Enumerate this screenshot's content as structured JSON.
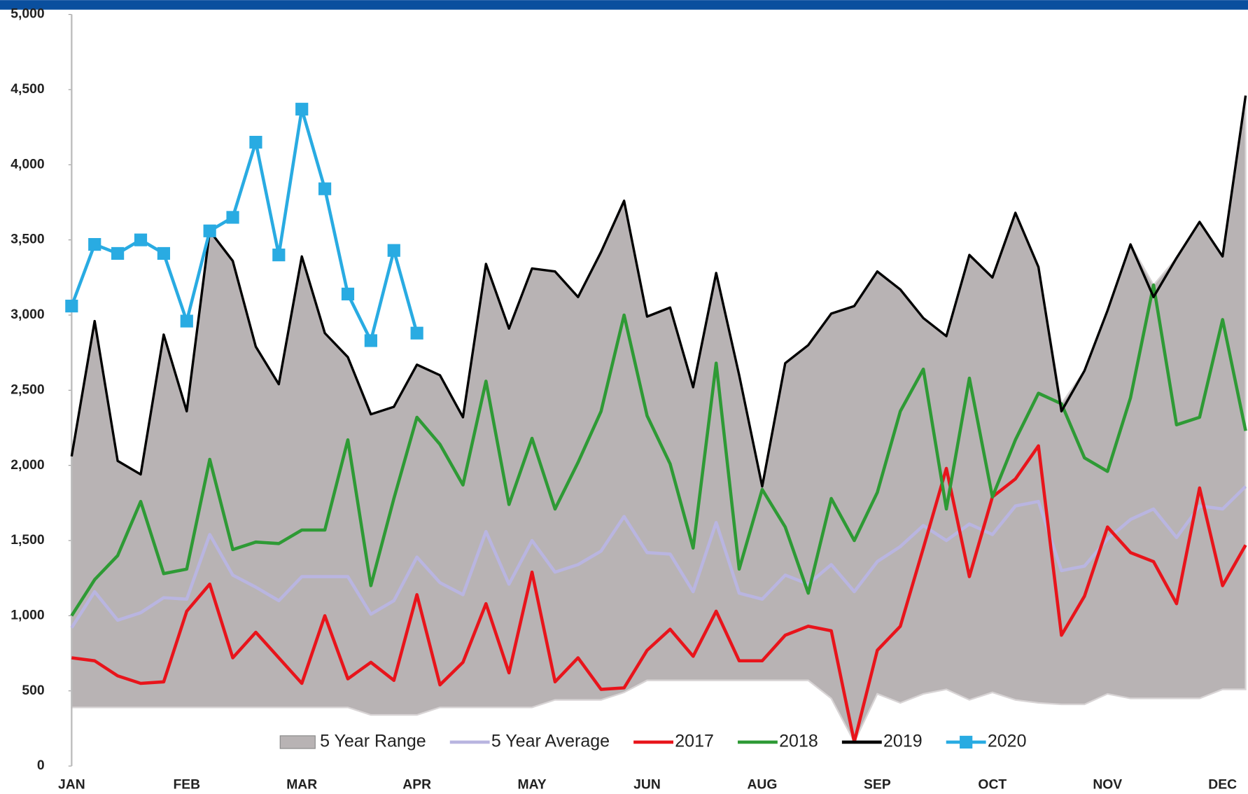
{
  "chart_data": {
    "type": "line",
    "categories": [
      "JAN",
      null,
      null,
      null,
      null,
      "FEB",
      null,
      null,
      null,
      null,
      "MAR",
      null,
      null,
      null,
      null,
      "APR",
      null,
      null,
      null,
      null,
      "MAY",
      null,
      null,
      null,
      null,
      "JUN",
      null,
      null,
      null,
      null,
      "AUG",
      null,
      null,
      null,
      null,
      "SEP",
      null,
      null,
      null,
      null,
      "OCT",
      null,
      null,
      null,
      null,
      "NOV",
      null,
      null,
      null,
      null,
      "DEC",
      null
    ],
    "ylim": [
      0,
      5000
    ],
    "yticks": [
      0,
      500,
      {
        "value": 1000,
        "label": "1,000"
      },
      {
        "value": 1500,
        "label": "1,500"
      },
      {
        "value": 2000,
        "label": "2,000"
      },
      {
        "value": 2500,
        "label": "2,500"
      },
      {
        "value": 3000,
        "label": "3,000"
      },
      {
        "value": 3500,
        "label": "3,500"
      },
      {
        "value": 4000,
        "label": "4,000"
      },
      {
        "value": 4500,
        "label": "4,500"
      },
      {
        "value": 5000,
        "label": "5,000"
      }
    ],
    "legend": "bottom",
    "range": {
      "name": "5 Year Range",
      "color": "#b8b3b4",
      "low": [
        390,
        390,
        390,
        390,
        390,
        390,
        390,
        390,
        390,
        390,
        390,
        390,
        390,
        340,
        340,
        340,
        390,
        390,
        390,
        390,
        390,
        440,
        440,
        440,
        490,
        570,
        570,
        570,
        570,
        570,
        570,
        570,
        570,
        450,
        160,
        480,
        420,
        480,
        510,
        440,
        490,
        440,
        420,
        410,
        410,
        480,
        450,
        450,
        450,
        450,
        510,
        510
      ],
      "high": [
        2060,
        2960,
        2030,
        1940,
        2870,
        2360,
        3560,
        3360,
        2790,
        2540,
        3390,
        2880,
        2720,
        2340,
        2390,
        2670,
        2600,
        2320,
        3340,
        2910,
        3310,
        3290,
        3120,
        3420,
        3760,
        2990,
        3050,
        2520,
        3280,
        2600,
        1860,
        2680,
        2800,
        3010,
        3060,
        3290,
        3170,
        2980,
        2860,
        3400,
        3250,
        3680,
        3320,
        2410,
        2630,
        3030,
        3470,
        3200,
        3380,
        3620,
        3390,
        4460
      ]
    },
    "series": [
      {
        "name": "5 Year Average",
        "color": "#b9b5e0",
        "values": [
          920,
          1160,
          970,
          1020,
          1120,
          1110,
          1540,
          1270,
          1190,
          1100,
          1260,
          1260,
          1260,
          1010,
          1100,
          1390,
          1220,
          1140,
          1560,
          1210,
          1500,
          1290,
          1340,
          1430,
          1660,
          1420,
          1410,
          1160,
          1620,
          1150,
          1110,
          1270,
          1210,
          1340,
          1160,
          1360,
          1460,
          1600,
          1500,
          1610,
          1540,
          1730,
          1760,
          1300,
          1330,
          1510,
          1640,
          1710,
          1520,
          1730,
          1710,
          1860
        ]
      },
      {
        "name": "2017",
        "color": "#e8141b",
        "values": [
          720,
          700,
          600,
          550,
          560,
          1030,
          1210,
          720,
          890,
          720,
          550,
          1000,
          580,
          690,
          570,
          1140,
          540,
          690,
          1080,
          620,
          1290,
          560,
          720,
          510,
          520,
          770,
          910,
          730,
          1030,
          700,
          700,
          870,
          930,
          900,
          160,
          770,
          930,
          1450,
          1980,
          1260,
          1790,
          1910,
          2130,
          870,
          1130,
          1590,
          1420,
          1360,
          1080,
          1850,
          1200,
          1470
        ]
      },
      {
        "name": "2018",
        "color": "#2e9a35",
        "values": [
          1000,
          1240,
          1400,
          1760,
          1280,
          1310,
          2040,
          1440,
          1490,
          1480,
          1570,
          1570,
          2170,
          1200,
          1780,
          2320,
          2140,
          1870,
          2560,
          1740,
          2180,
          1710,
          2020,
          2360,
          3000,
          2330,
          2010,
          1450,
          2680,
          1310,
          1840,
          1590,
          1150,
          1780,
          1500,
          1820,
          2360,
          2640,
          1710,
          2580,
          1790,
          2170,
          2480,
          2410,
          2050,
          1960,
          2450,
          3200,
          2270,
          2320,
          2970,
          2230
        ]
      },
      {
        "name": "2019",
        "color": "#000000",
        "values": [
          2060,
          2960,
          2030,
          1940,
          2870,
          2360,
          3560,
          3360,
          2790,
          2540,
          3390,
          2880,
          2720,
          2340,
          2390,
          2670,
          2600,
          2320,
          3340,
          2910,
          3310,
          3290,
          3120,
          3420,
          3760,
          2990,
          3050,
          2520,
          3280,
          2600,
          1860,
          2680,
          2800,
          3010,
          3060,
          3290,
          3170,
          2980,
          2860,
          3400,
          3250,
          3680,
          3320,
          2360,
          2630,
          3030,
          3470,
          3120,
          3380,
          3620,
          3390,
          4460
        ]
      },
      {
        "name": "2020",
        "color": "#29abe2",
        "marker": "square",
        "values": [
          3060,
          3470,
          3410,
          3500,
          3410,
          2960,
          3560,
          3650,
          4150,
          3400,
          4370,
          3840,
          3140,
          2830,
          3430,
          2880,
          null,
          null,
          null,
          null,
          null,
          null,
          null,
          null,
          null,
          null,
          null,
          null,
          null,
          null,
          null,
          null,
          null,
          null,
          null,
          null,
          null,
          null,
          null,
          null,
          null,
          null,
          null,
          null,
          null,
          null,
          null,
          null,
          null,
          null,
          null,
          null
        ]
      }
    ]
  }
}
